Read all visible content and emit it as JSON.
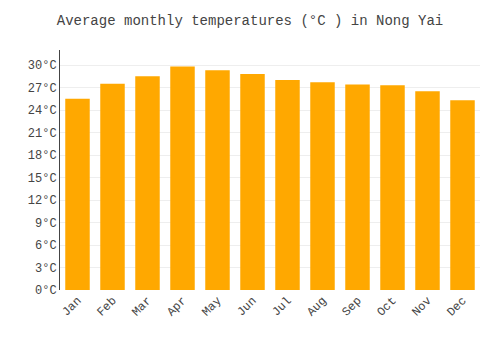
{
  "chart_data": {
    "type": "bar",
    "title": "Average monthly temperatures (°C ) in Nong Yai",
    "categories": [
      "Jan",
      "Feb",
      "Mar",
      "Apr",
      "May",
      "Jun",
      "Jul",
      "Aug",
      "Sep",
      "Oct",
      "Nov",
      "Dec"
    ],
    "values": [
      25.5,
      27.5,
      28.5,
      29.8,
      29.3,
      28.8,
      28.0,
      27.7,
      27.4,
      27.3,
      26.5,
      25.3
    ],
    "color": "#FFA800",
    "ylim": [
      0,
      32
    ],
    "yticks": [
      {
        "value": 0,
        "label": "0°C"
      },
      {
        "value": 3,
        "label": "3°C"
      },
      {
        "value": 6,
        "label": "6°C"
      },
      {
        "value": 9,
        "label": "9°C"
      },
      {
        "value": 12,
        "label": "12°C"
      },
      {
        "value": 15,
        "label": "15°C"
      },
      {
        "value": 18,
        "label": "18°C"
      },
      {
        "value": 21,
        "label": "21°C"
      },
      {
        "value": 24,
        "label": "24°C"
      },
      {
        "value": 27,
        "label": "27°C"
      },
      {
        "value": 30,
        "label": "30°C"
      }
    ],
    "grid": true
  }
}
